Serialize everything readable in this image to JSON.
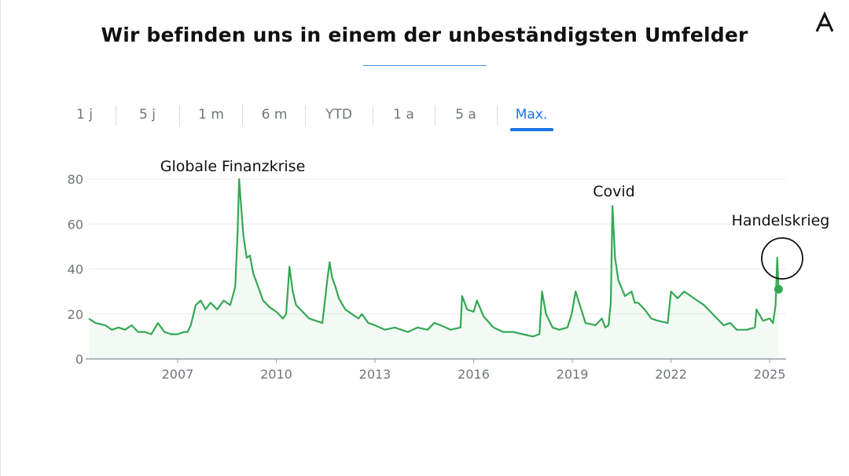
{
  "slide": {
    "title": "Wir befinden uns in einem der unbeständigsten Umfelder",
    "logo_icon": "letter-a-logo",
    "accent_color": "#4a90d9"
  },
  "tabs": [
    {
      "label": "1 j",
      "active": false
    },
    {
      "label": "5 j",
      "active": false
    },
    {
      "label": "1 m",
      "active": false
    },
    {
      "label": "6 m",
      "active": false
    },
    {
      "label": "YTD",
      "active": false
    },
    {
      "label": "1 a",
      "active": false
    },
    {
      "label": "5 a",
      "active": false
    },
    {
      "label": "Max.",
      "active": true
    }
  ],
  "chart_data": {
    "type": "line",
    "title": "",
    "xlabel": "",
    "ylabel": "",
    "line_color": "#34a853",
    "x_range": [
      2004.3,
      2025.5
    ],
    "ylim": [
      0,
      80
    ],
    "y_ticks": [
      "0",
      "20",
      "40",
      "60",
      "80"
    ],
    "x_ticks": [
      "2007",
      "2010",
      "2013",
      "2016",
      "2019",
      "2022",
      "2025"
    ],
    "grid": true,
    "series": [
      {
        "x": [
          2004.3,
          2004.5,
          2004.8,
          2005.0,
          2005.2,
          2005.4,
          2005.6,
          2005.8,
          2006.0,
          2006.2,
          2006.4,
          2006.6,
          2006.8,
          2007.0,
          2007.2,
          2007.3,
          2007.4,
          2007.55,
          2007.7,
          2007.85,
          2008.0,
          2008.2,
          2008.4,
          2008.6,
          2008.75,
          2008.82,
          2008.87,
          2008.92,
          2009.0,
          2009.1,
          2009.2,
          2009.3,
          2009.45,
          2009.6,
          2009.8,
          2010.0,
          2010.2,
          2010.3,
          2010.4,
          2010.5,
          2010.6,
          2010.8,
          2011.0,
          2011.2,
          2011.4,
          2011.55,
          2011.62,
          2011.7,
          2011.8,
          2011.9,
          2012.1,
          2012.3,
          2012.5,
          2012.6,
          2012.8,
          2013.0,
          2013.3,
          2013.6,
          2014.0,
          2014.3,
          2014.6,
          2014.8,
          2015.0,
          2015.3,
          2015.6,
          2015.65,
          2015.8,
          2016.0,
          2016.1,
          2016.3,
          2016.6,
          2016.9,
          2017.2,
          2017.5,
          2017.8,
          2018.0,
          2018.08,
          2018.2,
          2018.4,
          2018.6,
          2018.85,
          2018.98,
          2019.1,
          2019.4,
          2019.7,
          2019.9,
          2020.0,
          2020.1,
          2020.17,
          2020.22,
          2020.3,
          2020.4,
          2020.6,
          2020.8,
          2020.9,
          2021.0,
          2021.2,
          2021.4,
          2021.6,
          2021.9,
          2022.0,
          2022.2,
          2022.4,
          2022.6,
          2022.8,
          2023.0,
          2023.2,
          2023.4,
          2023.6,
          2023.8,
          2024.0,
          2024.3,
          2024.55,
          2024.6,
          2024.8,
          2025.0,
          2025.1,
          2025.18,
          2025.23,
          2025.27
        ],
        "y": [
          18,
          16,
          15,
          13,
          14,
          13,
          15,
          12,
          12,
          11,
          16,
          12,
          11,
          11,
          12,
          12,
          15,
          24,
          26,
          22,
          25,
          22,
          26,
          24,
          32,
          55,
          80,
          70,
          55,
          45,
          46,
          38,
          32,
          26,
          23,
          21,
          18,
          20,
          41,
          30,
          24,
          21,
          18,
          17,
          16,
          35,
          43,
          36,
          32,
          27,
          22,
          20,
          18,
          20,
          16,
          15,
          13,
          14,
          12,
          14,
          13,
          16,
          15,
          13,
          14,
          28,
          22,
          21,
          26,
          19,
          14,
          12,
          12,
          11,
          10,
          11,
          30,
          20,
          14,
          13,
          14,
          20,
          30,
          16,
          15,
          18,
          14,
          15,
          25,
          68,
          45,
          35,
          28,
          30,
          25,
          25,
          22,
          18,
          17,
          16,
          30,
          27,
          30,
          28,
          26,
          24,
          21,
          18,
          15,
          16,
          13,
          13,
          14,
          22,
          17,
          18,
          16,
          24,
          45,
          31
        ]
      }
    ],
    "annotations": [
      {
        "text": "Globale Finanzkrise"
      },
      {
        "text": "Covid"
      },
      {
        "text": "Handelskrieg"
      }
    ]
  }
}
